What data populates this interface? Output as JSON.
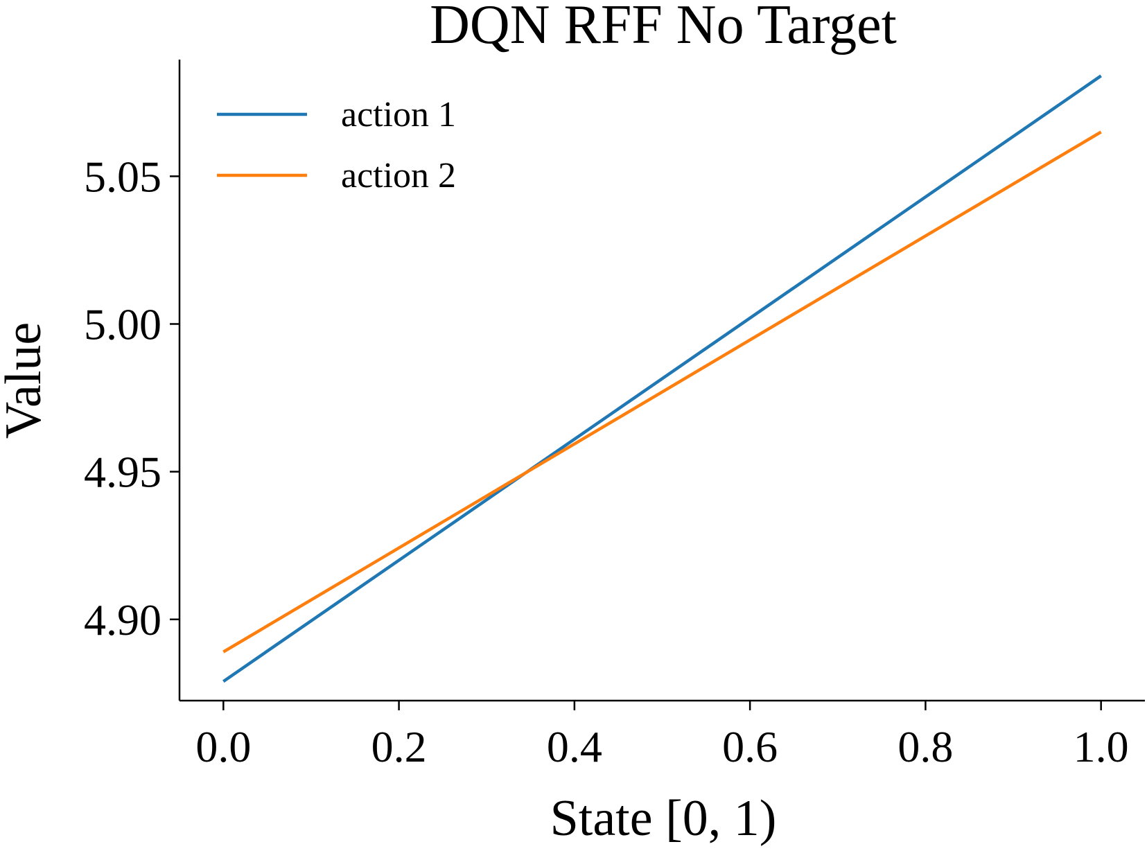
{
  "chart_data": {
    "type": "line",
    "title": "DQN RFF No Target",
    "xlabel": "State [0, 1)",
    "ylabel": "Value",
    "xlim": [
      -0.05,
      1.05
    ],
    "ylim": [
      4.8725,
      5.0895
    ],
    "xticks": [
      0.0,
      0.2,
      0.4,
      0.6,
      0.8,
      1.0
    ],
    "xtick_labels": [
      "0.0",
      "0.2",
      "0.4",
      "0.6",
      "0.8",
      "1.0"
    ],
    "yticks": [
      4.9,
      4.95,
      5.0,
      5.05
    ],
    "ytick_labels": [
      "4.90",
      "4.95",
      "5.00",
      "5.05"
    ],
    "grid": false,
    "legend_position": "top-left",
    "series": [
      {
        "name": "action 1",
        "color": "#1f77b4",
        "x": [
          0.0,
          1.0
        ],
        "y": [
          4.879,
          5.084
        ]
      },
      {
        "name": "action 2",
        "color": "#ff7f0e",
        "x": [
          0.0,
          1.0
        ],
        "y": [
          4.889,
          5.065
        ]
      }
    ]
  }
}
